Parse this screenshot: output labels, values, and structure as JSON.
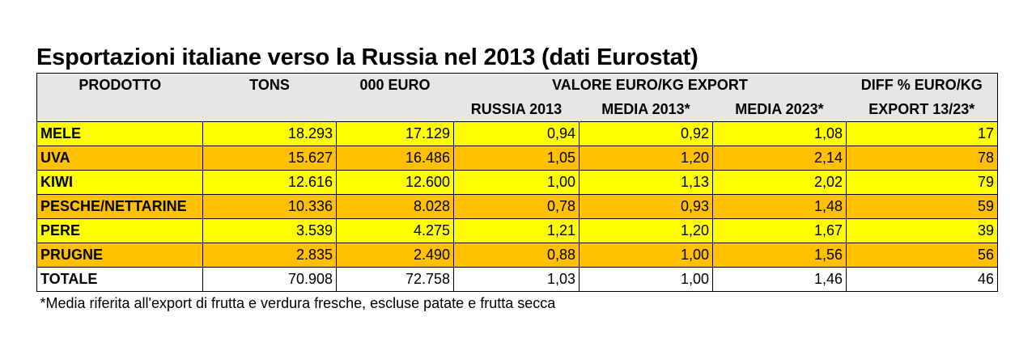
{
  "title": "Esportazioni italiane verso la Russia nel 2013 (dati Eurostat)",
  "headers": {
    "row1": {
      "prodotto": "PRODOTTO",
      "tons": "TONS",
      "euro": "000 EURO",
      "valore": "VALORE EURO/KG EXPORT",
      "diff": "DIFF %  EURO/KG"
    },
    "row2": {
      "russia2013": "RUSSIA 2013",
      "media2013": "MEDIA 2013*",
      "media2023": "MEDIA 2023*",
      "export": "EXPORT 13/23*"
    }
  },
  "rows": [
    {
      "prodotto": "MELE",
      "tons": "18.293",
      "euro": "17.129",
      "russia2013": "0,94",
      "media2013": "0,92",
      "media2023": "1,08",
      "diff": "17"
    },
    {
      "prodotto": "UVA",
      "tons": "15.627",
      "euro": "16.486",
      "russia2013": "1,05",
      "media2013": "1,20",
      "media2023": "2,14",
      "diff": "78"
    },
    {
      "prodotto": "KIWI",
      "tons": "12.616",
      "euro": "12.600",
      "russia2013": "1,00",
      "media2013": "1,13",
      "media2023": "2,02",
      "diff": "79"
    },
    {
      "prodotto": "PESCHE/NETTARINE",
      "tons": "10.336",
      "euro": "8.028",
      "russia2013": "0,78",
      "media2013": "0,93",
      "media2023": "1,48",
      "diff": "59"
    },
    {
      "prodotto": "PERE",
      "tons": "3.539",
      "euro": "4.275",
      "russia2013": "1,21",
      "media2013": "1,20",
      "media2023": "1,67",
      "diff": "39"
    },
    {
      "prodotto": "PRUGNE",
      "tons": "2.835",
      "euro": "2.490",
      "russia2013": "0,88",
      "media2013": "1,00",
      "media2023": "1,56",
      "diff": "56"
    },
    {
      "prodotto": "TOTALE",
      "tons": "70.908",
      "euro": "72.758",
      "russia2013": "1,03",
      "media2013": "1,00",
      "media2023": "1,46",
      "diff": "46"
    }
  ],
  "colors": {
    "yellow": "#ffff00",
    "orange": "#ffc000",
    "header": "#e7e6e6"
  },
  "note": "*Media riferita all'export di frutta e verdura fresche, escluse patate e frutta secca"
}
